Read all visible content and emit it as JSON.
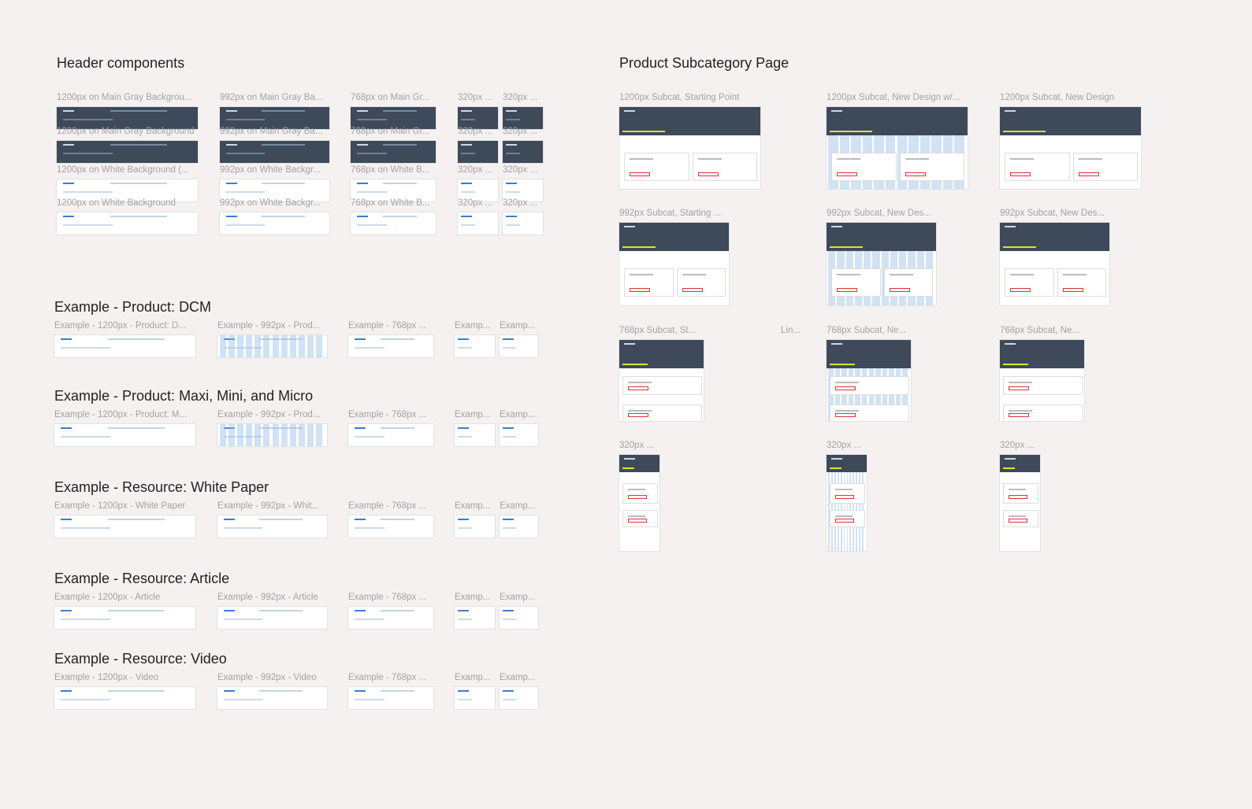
{
  "header_components": {
    "title": "Header components",
    "rows": [
      [
        "1200px on Main Gray Backgrou...",
        "992px on Main Gray Ba...",
        "768px on Main Gr...",
        "320px ...",
        "320px ..."
      ],
      [
        "1200px on Main Gray Background",
        "992px on Main Gray Ba...",
        "768px on Main Gr...",
        "320px ...",
        "320px ..."
      ],
      [
        "1200px on White Background (...",
        "992px on White Backgr...",
        "768px on White B...",
        "320px ...",
        "320px ..."
      ],
      [
        "1200px on White Background",
        "992px on White Backgr...",
        "768px on White B...",
        "320px ...",
        "320px ..."
      ]
    ]
  },
  "examples": [
    {
      "title": "Example - Product: DCM",
      "labels": [
        "Example - 1200px - Product: D...",
        "Example - 992px - Prod...",
        "Example - 768px ...",
        "Examp...",
        "Examp..."
      ]
    },
    {
      "title": "Example - Product: Maxi, Mini, and Micro",
      "labels": [
        "Example - 1200px - Product: M...",
        "Example - 992px - Prod...",
        "Example - 768px ...",
        "Examp...",
        "Examp..."
      ]
    },
    {
      "title": "Example - Resource: White Paper",
      "labels": [
        "Example - 1200px - White Paper",
        "Example - 992px - Whit...",
        "Example - 768px ...",
        "Examp...",
        "Examp..."
      ]
    },
    {
      "title": "Example - Resource: Article",
      "labels": [
        "Example - 1200px - Article",
        "Example - 992px - Article",
        "Example - 768px ...",
        "Examp...",
        "Examp..."
      ]
    },
    {
      "title": "Example - Resource: Video",
      "labels": [
        "Example - 1200px - Video",
        "Example - 992px - Video",
        "Example - 768px ...",
        "Examp...",
        "Examp..."
      ]
    }
  ],
  "subcategory": {
    "title": "Product Subcategory Page",
    "extra_label": "Lin...",
    "rows": [
      [
        "1200px Subcat, Starting Point",
        "1200px Subcat, New Design w/...",
        "1200px Subcat, New Design"
      ],
      [
        "992px Subcat, Starting ...",
        "992px Subcat, New Des...",
        "992px Subcat, New Des..."
      ],
      [
        "768px Subcat, St...",
        "768px Subcat, Ne...",
        "768px Subcat, Ne..."
      ],
      [
        "320px ...",
        "320px ...",
        "320px ..."
      ]
    ]
  }
}
